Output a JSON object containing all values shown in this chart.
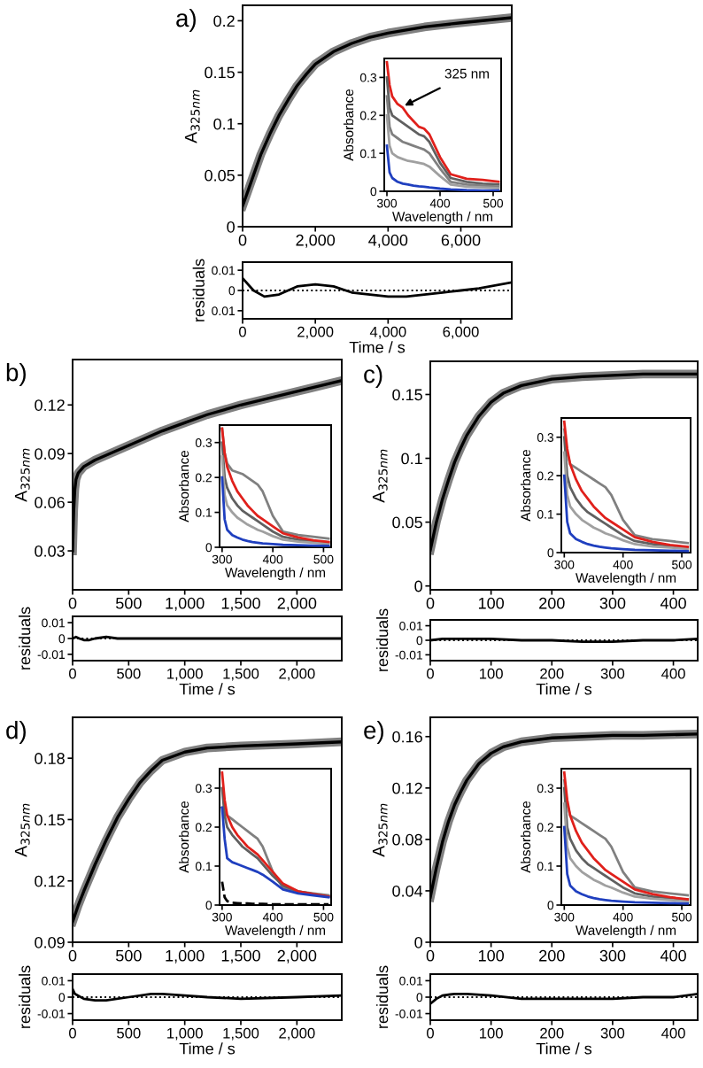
{
  "chart_data": [
    {
      "type": "line",
      "title": "a)",
      "ylabel": "A$_{325nm}$",
      "xlim": [
        0,
        7400
      ],
      "xticks": [
        0,
        {
          "value": 2000,
          "label": "2,000"
        },
        {
          "value": 4000,
          "label": "4,000"
        },
        {
          "value": 6000,
          "label": "6,000"
        }
      ],
      "ylim": [
        0,
        0.215
      ],
      "yticks": [
        0,
        0.05,
        0.1,
        0.15,
        0.2
      ],
      "x": [
        0,
        250,
        500,
        750,
        1000,
        1250,
        1500,
        1750,
        2000,
        2500,
        3000,
        3500,
        4000,
        5000,
        6000,
        7400
      ],
      "series": [
        {
          "color": "#808080",
          "values": [
            0.02,
            0.045,
            0.07,
            0.09,
            0.108,
            0.123,
            0.137,
            0.148,
            0.158,
            0.17,
            0.178,
            0.184,
            0.188,
            0.194,
            0.198,
            0.203
          ]
        },
        {
          "color": "#000000",
          "values": [
            0.02,
            0.045,
            0.07,
            0.09,
            0.108,
            0.123,
            0.137,
            0.148,
            0.158,
            0.17,
            0.178,
            0.184,
            0.188,
            0.194,
            0.198,
            0.203
          ]
        }
      ]
    },
    {
      "type": "line",
      "xlabel": "Wavelength / nm",
      "ylabel": "Absorbance",
      "xlim": [
        295,
        515
      ],
      "xticks": [
        300,
        400,
        500
      ],
      "ylim": [
        0,
        0.35
      ],
      "yticks": [
        0,
        0.1,
        0.2,
        0.3
      ],
      "x": [
        300,
        305,
        310,
        320,
        330,
        340,
        350,
        360,
        370,
        380,
        400,
        420,
        450,
        480,
        510
      ],
      "annotations": [
        {
          "text": "325 nm",
          "x": 325,
          "y": 0.22
        }
      ],
      "series": [
        {
          "color": "#e0201b",
          "values": [
            0.34,
            0.28,
            0.25,
            0.23,
            0.22,
            0.2,
            0.185,
            0.17,
            0.165,
            0.15,
            0.09,
            0.045,
            0.033,
            0.03,
            0.025
          ]
        },
        {
          "color": "#606060",
          "values": [
            0.3,
            0.22,
            0.2,
            0.19,
            0.18,
            0.17,
            0.16,
            0.15,
            0.145,
            0.13,
            0.075,
            0.035,
            0.025,
            0.02,
            0.018
          ]
        },
        {
          "color": "#808080",
          "values": [
            0.25,
            0.17,
            0.15,
            0.14,
            0.13,
            0.125,
            0.12,
            0.115,
            0.11,
            0.1,
            0.06,
            0.025,
            0.018,
            0.015,
            0.012
          ]
        },
        {
          "color": "#a0a0a0",
          "values": [
            0.2,
            0.12,
            0.1,
            0.09,
            0.085,
            0.08,
            0.078,
            0.075,
            0.072,
            0.065,
            0.04,
            0.018,
            0.012,
            0.01,
            0.008
          ]
        },
        {
          "color": "#1f3fbf",
          "values": [
            0.12,
            0.05,
            0.035,
            0.025,
            0.02,
            0.018,
            0.015,
            0.013,
            0.012,
            0.01,
            0.007,
            0.005,
            0.003,
            0.002,
            0.002
          ]
        }
      ]
    },
    {
      "type": "line",
      "xlabel": "Time / s",
      "ylabel": "residuals",
      "xlim": [
        0,
        7400
      ],
      "xticks": [
        0,
        {
          "value": 2000,
          "label": "2,000"
        },
        {
          "value": 4000,
          "label": "4,000"
        },
        {
          "value": 6000,
          "label": "6,000"
        }
      ],
      "ylim": [
        -0.014,
        0.014
      ],
      "yticks": [
        {
          "value": -0.01,
          "label": "0.01"
        },
        0,
        0.01
      ],
      "ref_lines": [
        {
          "axis": "y",
          "value": 0,
          "line_style": "dotted"
        }
      ],
      "x": [
        0,
        300,
        600,
        1000,
        1500,
        2000,
        2500,
        3000,
        3500,
        4000,
        4500,
        5000,
        5500,
        6000,
        6500,
        7400
      ],
      "series": [
        {
          "color": "#000000",
          "values": [
            0.006,
            0.0,
            -0.003,
            -0.002,
            0.002,
            0.003,
            0.002,
            -0.001,
            -0.002,
            -0.003,
            -0.003,
            -0.002,
            -0.001,
            0.0,
            0.001,
            0.004
          ]
        }
      ]
    },
    {
      "type": "line",
      "title": "b)",
      "ylabel": "A$_{325nm}$",
      "xlim": [
        0,
        2400
      ],
      "xticks": [
        0,
        500,
        {
          "value": 1000,
          "label": "1,000"
        },
        {
          "value": 1500,
          "label": "1,500"
        },
        {
          "value": 2000,
          "label": "2,000"
        }
      ],
      "ylim": [
        0.006,
        0.148
      ],
      "yticks": [
        0.03,
        0.06,
        0.09,
        0.12
      ],
      "x": [
        0,
        10,
        20,
        30,
        50,
        75,
        100,
        200,
        400,
        600,
        800,
        1000,
        1200,
        1500,
        1800,
        2100,
        2400
      ],
      "series": [
        {
          "color": "#808080",
          "values": [
            0.03,
            0.055,
            0.068,
            0.074,
            0.078,
            0.08,
            0.082,
            0.086,
            0.092,
            0.098,
            0.104,
            0.109,
            0.114,
            0.12,
            0.125,
            0.13,
            0.135
          ]
        },
        {
          "color": "#000000",
          "values": [
            0.03,
            0.055,
            0.068,
            0.074,
            0.078,
            0.08,
            0.082,
            0.086,
            0.092,
            0.098,
            0.104,
            0.109,
            0.114,
            0.12,
            0.125,
            0.13,
            0.135
          ]
        }
      ]
    },
    {
      "type": "line",
      "xlabel": "Wavelength / nm",
      "ylabel": "Absorbance",
      "xlim": [
        295,
        515
      ],
      "xticks": [
        300,
        400,
        500
      ],
      "ylim": [
        0,
        0.35
      ],
      "yticks": [
        0,
        0.1,
        0.2,
        0.3
      ],
      "x": [
        300,
        305,
        310,
        320,
        330,
        340,
        350,
        360,
        370,
        380,
        400,
        420,
        450,
        480,
        510
      ],
      "series": [
        {
          "color": "#808080",
          "values": [
            0.34,
            0.27,
            0.24,
            0.22,
            0.215,
            0.21,
            0.2,
            0.19,
            0.18,
            0.16,
            0.09,
            0.045,
            0.035,
            0.03,
            0.025
          ]
        },
        {
          "color": "#606060",
          "values": [
            0.3,
            0.2,
            0.17,
            0.14,
            0.12,
            0.105,
            0.095,
            0.085,
            0.075,
            0.065,
            0.045,
            0.03,
            0.022,
            0.018,
            0.014
          ]
        },
        {
          "color": "#a0a0a0",
          "values": [
            0.26,
            0.15,
            0.12,
            0.1,
            0.085,
            0.075,
            0.065,
            0.058,
            0.05,
            0.045,
            0.032,
            0.022,
            0.016,
            0.013,
            0.01
          ]
        },
        {
          "color": "#e0201b",
          "values": [
            0.34,
            0.27,
            0.23,
            0.19,
            0.16,
            0.14,
            0.12,
            0.105,
            0.09,
            0.08,
            0.06,
            0.04,
            0.028,
            0.02,
            0.015
          ]
        },
        {
          "color": "#1f3fbf",
          "values": [
            0.2,
            0.08,
            0.05,
            0.035,
            0.028,
            0.022,
            0.018,
            0.015,
            0.013,
            0.011,
            0.009,
            0.007,
            0.006,
            0.005,
            0.004
          ]
        }
      ]
    },
    {
      "type": "line",
      "xlabel": "Time / s",
      "ylabel": "residuals",
      "xlim": [
        0,
        2400
      ],
      "xticks": [
        0,
        500,
        {
          "value": 1000,
          "label": "1,000"
        },
        {
          "value": 1500,
          "label": "1,500"
        },
        {
          "value": 2000,
          "label": "2,000"
        }
      ],
      "ylim": [
        -0.014,
        0.014
      ],
      "yticks": [
        -0.01,
        0,
        0.01
      ],
      "ref_lines": [
        {
          "axis": "y",
          "value": 0,
          "line_style": "dotted"
        }
      ],
      "x": [
        0,
        30,
        60,
        100,
        150,
        200,
        300,
        400,
        800,
        1600,
        2400
      ],
      "series": [
        {
          "color": "#000000",
          "values": [
            0.0,
            0.001,
            0.0,
            -0.001,
            -0.001,
            0,
            0.001,
            0,
            0,
            0,
            0
          ]
        }
      ]
    },
    {
      "type": "line",
      "title": "c)",
      "ylabel": "A$_{325nm}$",
      "xlim": [
        0,
        440
      ],
      "xticks": [
        0,
        100,
        200,
        300,
        400
      ],
      "ylim": [
        -0.003,
        0.176
      ],
      "yticks": [
        0,
        0.05,
        0.1,
        0.15
      ],
      "x": [
        0,
        10,
        20,
        30,
        40,
        50,
        60,
        80,
        100,
        120,
        150,
        200,
        250,
        300,
        350,
        440
      ],
      "series": [
        {
          "color": "#808080",
          "values": [
            0.028,
            0.05,
            0.068,
            0.083,
            0.097,
            0.108,
            0.118,
            0.133,
            0.144,
            0.151,
            0.157,
            0.162,
            0.164,
            0.165,
            0.166,
            0.166
          ]
        },
        {
          "color": "#000000",
          "values": [
            0.028,
            0.05,
            0.068,
            0.083,
            0.097,
            0.108,
            0.118,
            0.133,
            0.144,
            0.151,
            0.157,
            0.162,
            0.164,
            0.165,
            0.166,
            0.166
          ]
        }
      ]
    },
    {
      "type": "line",
      "xlabel": "Wavelength / nm",
      "ylabel": "Absorbance",
      "xlim": [
        295,
        515
      ],
      "xticks": [
        300,
        400,
        500
      ],
      "ylim": [
        0,
        0.35
      ],
      "yticks": [
        0,
        0.1,
        0.2,
        0.3
      ],
      "x": [
        300,
        305,
        310,
        320,
        330,
        340,
        350,
        360,
        370,
        380,
        400,
        420,
        450,
        480,
        510
      ],
      "series": [
        {
          "color": "#808080",
          "values": [
            0.32,
            0.26,
            0.23,
            0.22,
            0.21,
            0.2,
            0.19,
            0.18,
            0.17,
            0.15,
            0.085,
            0.045,
            0.035,
            0.03,
            0.025
          ]
        },
        {
          "color": "#606060",
          "values": [
            0.3,
            0.2,
            0.17,
            0.14,
            0.12,
            0.105,
            0.095,
            0.085,
            0.075,
            0.065,
            0.045,
            0.03,
            0.022,
            0.018,
            0.014
          ]
        },
        {
          "color": "#a0a0a0",
          "values": [
            0.26,
            0.15,
            0.12,
            0.1,
            0.085,
            0.075,
            0.065,
            0.058,
            0.05,
            0.045,
            0.032,
            0.022,
            0.016,
            0.013,
            0.01
          ]
        },
        {
          "color": "#e0201b",
          "values": [
            0.34,
            0.27,
            0.23,
            0.19,
            0.16,
            0.14,
            0.12,
            0.105,
            0.09,
            0.08,
            0.06,
            0.04,
            0.028,
            0.02,
            0.015
          ]
        },
        {
          "color": "#1f3fbf",
          "values": [
            0.2,
            0.08,
            0.05,
            0.035,
            0.028,
            0.022,
            0.018,
            0.015,
            0.013,
            0.011,
            0.009,
            0.007,
            0.006,
            0.005,
            0.004
          ]
        }
      ]
    },
    {
      "type": "line",
      "xlabel": "Time / s",
      "ylabel": "residuals",
      "xlim": [
        0,
        440
      ],
      "xticks": [
        0,
        100,
        200,
        300,
        400
      ],
      "ylim": [
        -0.014,
        0.014
      ],
      "yticks": [
        -0.01,
        0,
        0.01
      ],
      "ref_lines": [
        {
          "axis": "y",
          "value": 0,
          "line_style": "dotted"
        }
      ],
      "x": [
        0,
        20,
        50,
        100,
        150,
        200,
        250,
        300,
        350,
        400,
        440
      ],
      "series": [
        {
          "color": "#000000",
          "values": [
            0,
            0.001,
            0.001,
            0.001,
            0,
            0,
            -0.001,
            -0.001,
            0,
            0,
            0.001
          ]
        }
      ]
    },
    {
      "type": "line",
      "title": "d)",
      "ylabel": "A$_{325nm}$",
      "xlim": [
        0,
        2400
      ],
      "xticks": [
        0,
        500,
        {
          "value": 1000,
          "label": "1,000"
        },
        {
          "value": 1500,
          "label": "1,500"
        },
        {
          "value": 2000,
          "label": "2,000"
        }
      ],
      "ylim": [
        0.09,
        0.2
      ],
      "yticks": [
        0.09,
        0.12,
        0.15,
        0.18
      ],
      "x": [
        0,
        50,
        100,
        200,
        300,
        400,
        500,
        600,
        700,
        800,
        1000,
        1200,
        1500,
        2000,
        2400
      ],
      "series": [
        {
          "color": "#808080",
          "values": [
            0.1,
            0.108,
            0.115,
            0.128,
            0.14,
            0.151,
            0.16,
            0.168,
            0.174,
            0.179,
            0.183,
            0.185,
            0.186,
            0.187,
            0.188
          ]
        },
        {
          "color": "#000000",
          "values": [
            0.1,
            0.108,
            0.115,
            0.128,
            0.14,
            0.151,
            0.16,
            0.168,
            0.174,
            0.179,
            0.183,
            0.185,
            0.186,
            0.187,
            0.188
          ]
        }
      ]
    },
    {
      "type": "line",
      "xlabel": "Wavelength / nm",
      "ylabel": "Absorbance",
      "xlim": [
        295,
        515
      ],
      "xticks": [
        300,
        400,
        500
      ],
      "ylim": [
        0,
        0.35
      ],
      "yticks": [
        0,
        0.1,
        0.2,
        0.3
      ],
      "x": [
        300,
        305,
        310,
        320,
        330,
        340,
        350,
        360,
        370,
        380,
        400,
        420,
        450,
        480,
        510
      ],
      "series": [
        {
          "color": "#808080",
          "values": [
            0.25,
            0.24,
            0.23,
            0.22,
            0.21,
            0.2,
            0.19,
            0.18,
            0.17,
            0.15,
            0.085,
            0.045,
            0.035,
            0.03,
            0.025
          ]
        },
        {
          "color": "#606060",
          "values": [
            0.3,
            0.23,
            0.2,
            0.18,
            0.165,
            0.15,
            0.14,
            0.13,
            0.12,
            0.105,
            0.075,
            0.05,
            0.035,
            0.028,
            0.022
          ]
        },
        {
          "color": "#e0201b",
          "values": [
            0.34,
            0.27,
            0.23,
            0.2,
            0.18,
            0.165,
            0.15,
            0.14,
            0.13,
            0.115,
            0.085,
            0.055,
            0.035,
            0.028,
            0.022
          ]
        },
        {
          "color": "#1f3fbf",
          "values": [
            0.25,
            0.17,
            0.12,
            0.11,
            0.105,
            0.1,
            0.095,
            0.09,
            0.085,
            0.078,
            0.06,
            0.04,
            0.03,
            0.025,
            0.02
          ]
        },
        {
          "color": "#000000",
          "line_style": "dashed",
          "values": [
            0.06,
            0.02,
            0.01,
            0.006,
            0.005,
            0.004,
            0.004,
            0.003,
            0.003,
            0.003,
            0.002,
            0.002,
            0.002,
            0.002,
            0.002
          ]
        }
      ]
    },
    {
      "type": "line",
      "xlabel": "Time / s",
      "ylabel": "residuals",
      "xlim": [
        0,
        2400
      ],
      "xticks": [
        0,
        500,
        {
          "value": 1000,
          "label": "1,000"
        },
        {
          "value": 1500,
          "label": "1,500"
        },
        {
          "value": 2000,
          "label": "2,000"
        }
      ],
      "ylim": [
        -0.014,
        0.014
      ],
      "yticks": [
        -0.01,
        0,
        0.01
      ],
      "ref_lines": [
        {
          "axis": "y",
          "value": 0,
          "line_style": "dotted"
        }
      ],
      "x": [
        0,
        20,
        100,
        200,
        300,
        500,
        700,
        800,
        1000,
        1200,
        1500,
        2000,
        2400
      ],
      "series": [
        {
          "color": "#000000",
          "values": [
            0.005,
            0.002,
            -0.001,
            -0.002,
            -0.002,
            0,
            0.002,
            0.002,
            0.001,
            0,
            -0.001,
            0,
            0.001
          ]
        }
      ]
    },
    {
      "type": "line",
      "title": "e)",
      "ylabel": "A$_{325nm}$",
      "xlim": [
        0,
        440
      ],
      "xticks": [
        0,
        100,
        200,
        300,
        400
      ],
      "ylim": [
        0,
        0.175
      ],
      "yticks": [
        0,
        0.04,
        0.08,
        0.12,
        0.16
      ],
      "x": [
        0,
        10,
        20,
        30,
        40,
        50,
        60,
        80,
        100,
        120,
        150,
        200,
        250,
        300,
        350,
        440
      ],
      "series": [
        {
          "color": "#808080",
          "values": [
            0.035,
            0.058,
            0.078,
            0.094,
            0.107,
            0.117,
            0.126,
            0.139,
            0.147,
            0.152,
            0.156,
            0.159,
            0.16,
            0.161,
            0.161,
            0.162
          ]
        },
        {
          "color": "#000000",
          "values": [
            0.035,
            0.058,
            0.078,
            0.094,
            0.107,
            0.117,
            0.126,
            0.139,
            0.147,
            0.152,
            0.156,
            0.159,
            0.16,
            0.161,
            0.161,
            0.162
          ]
        }
      ]
    },
    {
      "type": "line",
      "xlabel": "Wavelength / nm",
      "ylabel": "Absorbance",
      "xlim": [
        295,
        515
      ],
      "xticks": [
        300,
        400,
        500
      ],
      "ylim": [
        0,
        0.35
      ],
      "yticks": [
        0,
        0.1,
        0.2,
        0.3
      ],
      "x": [
        300,
        305,
        310,
        320,
        330,
        340,
        350,
        360,
        370,
        380,
        400,
        420,
        450,
        480,
        510
      ],
      "series": [
        {
          "color": "#808080",
          "values": [
            0.32,
            0.26,
            0.23,
            0.22,
            0.21,
            0.2,
            0.19,
            0.18,
            0.17,
            0.15,
            0.085,
            0.045,
            0.035,
            0.03,
            0.025
          ]
        },
        {
          "color": "#606060",
          "values": [
            0.3,
            0.2,
            0.17,
            0.14,
            0.12,
            0.105,
            0.095,
            0.085,
            0.075,
            0.065,
            0.045,
            0.03,
            0.022,
            0.018,
            0.014
          ]
        },
        {
          "color": "#a0a0a0",
          "values": [
            0.26,
            0.15,
            0.12,
            0.1,
            0.085,
            0.075,
            0.065,
            0.058,
            0.05,
            0.045,
            0.032,
            0.022,
            0.016,
            0.013,
            0.01
          ]
        },
        {
          "color": "#e0201b",
          "values": [
            0.34,
            0.27,
            0.23,
            0.19,
            0.16,
            0.14,
            0.12,
            0.105,
            0.09,
            0.08,
            0.06,
            0.04,
            0.028,
            0.02,
            0.015
          ]
        },
        {
          "color": "#1f3fbf",
          "values": [
            0.2,
            0.08,
            0.05,
            0.035,
            0.028,
            0.022,
            0.018,
            0.015,
            0.013,
            0.011,
            0.009,
            0.007,
            0.006,
            0.005,
            0.004
          ]
        }
      ]
    },
    {
      "type": "line",
      "xlabel": "Time / s",
      "ylabel": "residuals",
      "xlim": [
        0,
        440
      ],
      "xticks": [
        0,
        100,
        200,
        300,
        400
      ],
      "ylim": [
        -0.014,
        0.014
      ],
      "yticks": [
        -0.01,
        0,
        0.01
      ],
      "ref_lines": [
        {
          "axis": "y",
          "value": 0,
          "line_style": "dotted"
        }
      ],
      "x": [
        0,
        10,
        20,
        40,
        60,
        100,
        150,
        200,
        250,
        300,
        350,
        400,
        440
      ],
      "series": [
        {
          "color": "#000000",
          "values": [
            -0.004,
            -0.001,
            0.001,
            0.002,
            0.002,
            0.001,
            -0.001,
            -0.001,
            -0.001,
            -0.001,
            0,
            0,
            0.002
          ]
        }
      ]
    }
  ]
}
